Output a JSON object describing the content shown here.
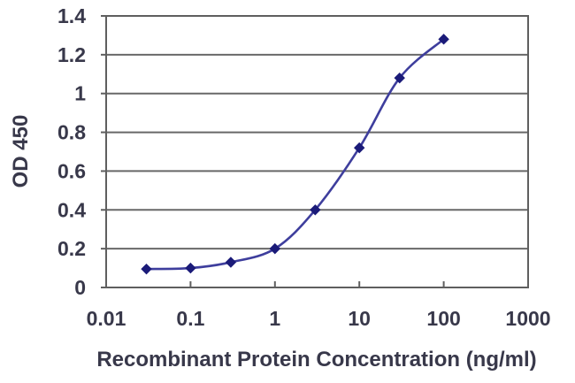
{
  "chart_data": {
    "type": "line",
    "x_scale": "log",
    "x": [
      0.03,
      0.1,
      0.3,
      1,
      3,
      10,
      30,
      100
    ],
    "y": [
      0.095,
      0.1,
      0.13,
      0.2,
      0.4,
      0.72,
      1.08,
      1.28
    ],
    "xlabel": "Recombinant Protein Concentration (ng/ml)",
    "ylabel": "OD 450",
    "xlim": [
      0.01,
      1000
    ],
    "ylim": [
      0,
      1.4
    ],
    "x_tick_labels": [
      "0.01",
      "0.1",
      "1",
      "10",
      "100",
      "1000"
    ],
    "x_tick_values": [
      0.01,
      0.1,
      1,
      10,
      100,
      1000
    ],
    "y_tick_labels": [
      "0",
      "0.2",
      "0.4",
      "0.6",
      "0.8",
      "1",
      "1.2",
      "1.4"
    ],
    "y_tick_values": [
      0,
      0.2,
      0.4,
      0.6,
      0.8,
      1,
      1.2,
      1.4
    ],
    "grid": "horizontal",
    "legend": "none",
    "marker": "diamond",
    "colors": {
      "line": "#3e3e9d",
      "marker": "#1b1b79",
      "grid": "#686868",
      "border": "#5f5f5f",
      "text": "#38384a",
      "background": "#ffffff"
    }
  }
}
